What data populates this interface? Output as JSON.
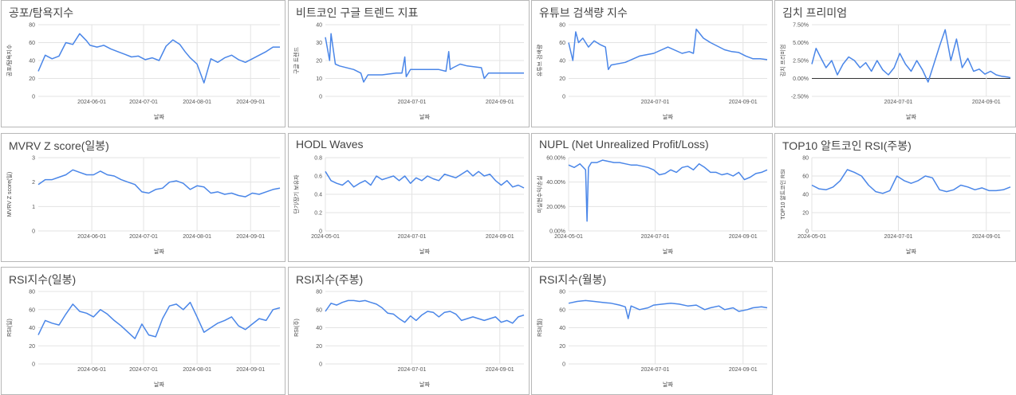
{
  "colors": {
    "series": "#4a86e8",
    "grid": "#e3e3e3",
    "border": "#b7b7b7"
  },
  "chart_data": [
    {
      "id": "fear-greed",
      "type": "line",
      "title": "공포/탐욕지수",
      "xlabel": "날짜",
      "ylabel": "공포/탐욕지수",
      "xlim": [
        0,
        140
      ],
      "ylim": [
        0,
        80
      ],
      "yticks": [
        0,
        20,
        40,
        60,
        80
      ],
      "ytick_labels": [
        "0",
        "20",
        "40",
        "60",
        "80"
      ],
      "xticks": [
        31,
        61,
        92,
        123
      ],
      "xtick_labels": [
        "2024-06-01",
        "2024-07-01",
        "2024-08-01",
        "2024-09-01"
      ],
      "zero_line": false,
      "x": [
        0,
        4,
        8,
        12,
        16,
        20,
        24,
        28,
        30,
        34,
        38,
        42,
        46,
        50,
        54,
        58,
        62,
        66,
        70,
        74,
        78,
        82,
        85,
        88,
        92,
        96,
        100,
        104,
        108,
        112,
        116,
        120,
        124,
        128,
        132,
        136,
        140
      ],
      "y": [
        28,
        46,
        42,
        45,
        60,
        58,
        70,
        62,
        57,
        55,
        57,
        53,
        50,
        47,
        44,
        45,
        41,
        43,
        40,
        56,
        63,
        58,
        50,
        43,
        36,
        15,
        42,
        38,
        43,
        46,
        41,
        38,
        42,
        46,
        50,
        55,
        55
      ]
    },
    {
      "id": "google-trends",
      "type": "line",
      "title": "비트코인 구글 트렌드 지표",
      "xlabel": "날짜",
      "ylabel": "구글 트렌드",
      "xlim": [
        0,
        140
      ],
      "ylim": [
        0,
        40
      ],
      "yticks": [
        0,
        10,
        20,
        30,
        40
      ],
      "ytick_labels": [
        "0",
        "10",
        "20",
        "30",
        "40"
      ],
      "xticks": [
        61,
        123
      ],
      "xtick_labels": [
        "2024-07-01",
        "2024-09-01"
      ],
      "zero_line": false,
      "x": [
        0,
        3,
        4,
        7,
        10,
        20,
        25,
        27,
        30,
        40,
        50,
        54,
        56,
        57,
        60,
        70,
        80,
        85,
        87,
        88,
        90,
        95,
        100,
        110,
        112,
        115,
        125,
        130,
        140
      ],
      "y": [
        33,
        20,
        35,
        18,
        17,
        15,
        13,
        8,
        12,
        12,
        13,
        13,
        22,
        11,
        15,
        15,
        15,
        14,
        25,
        15,
        16,
        18,
        17,
        16,
        10,
        13,
        13,
        13,
        13
      ]
    },
    {
      "id": "youtube-search",
      "type": "line",
      "title": "유튜브 검색량 지수",
      "xlabel": "날짜",
      "ylabel": "유튜브 검색량",
      "xlim": [
        0,
        140
      ],
      "ylim": [
        0,
        80
      ],
      "yticks": [
        0,
        20,
        40,
        60,
        80
      ],
      "ytick_labels": [
        "0",
        "20",
        "40",
        "60",
        "80"
      ],
      "xticks": [
        61,
        123
      ],
      "xtick_labels": [
        "2024-07-01",
        "2024-09-01"
      ],
      "zero_line": false,
      "x": [
        0,
        3,
        5,
        7,
        10,
        14,
        18,
        22,
        26,
        28,
        30,
        40,
        50,
        60,
        70,
        80,
        85,
        88,
        90,
        95,
        100,
        110,
        115,
        120,
        125,
        130,
        135,
        140
      ],
      "y": [
        60,
        40,
        72,
        60,
        65,
        55,
        62,
        58,
        55,
        30,
        35,
        38,
        45,
        48,
        55,
        48,
        50,
        48,
        75,
        65,
        60,
        52,
        50,
        49,
        45,
        42,
        42,
        41
      ]
    },
    {
      "id": "kimchi-premium",
      "type": "line",
      "title": "김치 프리미엄",
      "xlabel": "날짜",
      "ylabel": "김치 프리미엄",
      "xlim": [
        0,
        140
      ],
      "ylim": [
        -2.5,
        7.5
      ],
      "yticks": [
        -2.5,
        0,
        2.5,
        5,
        7.5
      ],
      "ytick_labels": [
        "-2.50%",
        "0.00%",
        "2.50%",
        "5.00%",
        "7.50%"
      ],
      "xticks": [
        61,
        123
      ],
      "xtick_labels": [
        "2024-07-01",
        "2024-09-01"
      ],
      "zero_line": true,
      "x": [
        0,
        3,
        6,
        10,
        14,
        18,
        22,
        26,
        30,
        34,
        38,
        42,
        46,
        50,
        54,
        58,
        62,
        66,
        70,
        74,
        78,
        82,
        86,
        90,
        94,
        98,
        102,
        106,
        110,
        114,
        118,
        122,
        126,
        130,
        134,
        138,
        140
      ],
      "y": [
        2,
        4.2,
        3,
        1.5,
        2.5,
        0.5,
        2,
        3,
        2.5,
        1.5,
        2.2,
        1,
        2.5,
        1.2,
        0.5,
        1.5,
        3.5,
        2,
        1,
        2.5,
        1.2,
        -0.5,
        2,
        4.5,
        6.8,
        2.5,
        5.5,
        1.5,
        2.8,
        1,
        1.3,
        0.6,
        1,
        0.5,
        0.3,
        0.2,
        0.1
      ]
    },
    {
      "id": "mvrv-z",
      "type": "line",
      "title": "MVRV Z score(일봉)",
      "xlabel": "날짜",
      "ylabel": "MVRV Z score(일)",
      "xlim": [
        0,
        140
      ],
      "ylim": [
        0,
        3
      ],
      "yticks": [
        0,
        1,
        2,
        3
      ],
      "ytick_labels": [
        "0",
        "1",
        "2",
        "3"
      ],
      "xticks": [
        31,
        61,
        92,
        123
      ],
      "xtick_labels": [
        "2024-06-01",
        "2024-07-01",
        "2024-08-01",
        "2024-09-01"
      ],
      "zero_line": false,
      "x": [
        0,
        4,
        8,
        12,
        16,
        20,
        24,
        28,
        32,
        36,
        40,
        44,
        48,
        52,
        56,
        60,
        64,
        68,
        72,
        76,
        80,
        84,
        88,
        92,
        96,
        100,
        104,
        108,
        112,
        116,
        120,
        124,
        128,
        132,
        136,
        140
      ],
      "y": [
        1.9,
        2.1,
        2.1,
        2.2,
        2.3,
        2.5,
        2.4,
        2.3,
        2.3,
        2.45,
        2.3,
        2.25,
        2.1,
        2.0,
        1.9,
        1.6,
        1.55,
        1.7,
        1.75,
        2.0,
        2.05,
        1.95,
        1.7,
        1.85,
        1.8,
        1.55,
        1.6,
        1.5,
        1.55,
        1.45,
        1.4,
        1.55,
        1.5,
        1.6,
        1.7,
        1.75
      ]
    },
    {
      "id": "hodl-waves",
      "type": "line",
      "title": "HODL Waves",
      "xlabel": "날짜",
      "ylabel": "단기/장기 보유자",
      "xlim": [
        0,
        140
      ],
      "ylim": [
        0,
        0.8
      ],
      "yticks": [
        0,
        0.2,
        0.4,
        0.6,
        0.8
      ],
      "ytick_labels": [
        "0",
        "0.2",
        "0.4",
        "0.6",
        "0.8"
      ],
      "xticks": [
        0,
        61,
        123
      ],
      "xtick_labels": [
        "2024-05-01",
        "2024-07-01",
        "2024-09-01"
      ],
      "zero_line": false,
      "x": [
        0,
        4,
        8,
        12,
        16,
        20,
        24,
        28,
        32,
        36,
        40,
        44,
        48,
        52,
        56,
        60,
        64,
        68,
        72,
        76,
        80,
        84,
        88,
        92,
        96,
        100,
        104,
        108,
        112,
        116,
        120,
        124,
        128,
        132,
        136,
        140
      ],
      "y": [
        0.65,
        0.55,
        0.52,
        0.5,
        0.55,
        0.48,
        0.52,
        0.55,
        0.5,
        0.6,
        0.56,
        0.58,
        0.6,
        0.55,
        0.6,
        0.52,
        0.58,
        0.55,
        0.6,
        0.57,
        0.55,
        0.62,
        0.6,
        0.58,
        0.62,
        0.66,
        0.6,
        0.65,
        0.6,
        0.62,
        0.55,
        0.5,
        0.55,
        0.48,
        0.5,
        0.47
      ]
    },
    {
      "id": "nupl",
      "type": "line",
      "title": "NUPL (Net Unrealized Profit/Loss)",
      "xlabel": "날짜",
      "ylabel": "미실현수익/손실",
      "xlim": [
        0,
        140
      ],
      "ylim": [
        0,
        60
      ],
      "yticks": [
        0,
        20,
        40,
        60
      ],
      "ytick_labels": [
        "0.00%",
        "20.00%",
        "40.00%",
        "60.00%"
      ],
      "xticks": [
        0,
        61,
        123
      ],
      "xtick_labels": [
        "2024-05-01",
        "2024-07-01",
        "2024-09-01"
      ],
      "zero_line": false,
      "x": [
        0,
        4,
        8,
        12,
        13,
        14,
        16,
        20,
        24,
        28,
        32,
        36,
        40,
        44,
        48,
        52,
        56,
        60,
        64,
        68,
        72,
        76,
        80,
        84,
        88,
        92,
        96,
        100,
        104,
        108,
        112,
        116,
        120,
        124,
        128,
        132,
        136,
        140
      ],
      "y": [
        54,
        52,
        55,
        50,
        8,
        52,
        56,
        56,
        58,
        57,
        56,
        56,
        55,
        54,
        54,
        53,
        52,
        50,
        46,
        47,
        50,
        48,
        52,
        53,
        50,
        55,
        52,
        48,
        48,
        46,
        47,
        45,
        48,
        42,
        44,
        47,
        48,
        50
      ]
    },
    {
      "id": "top10-alt-rsi",
      "type": "line",
      "title": "TOP10 알트코인 RSI(주봉)",
      "xlabel": "날짜",
      "ylabel": "TOP10 알트코인 RSI",
      "xlim": [
        0,
        140
      ],
      "ylim": [
        0,
        80
      ],
      "yticks": [
        0,
        20,
        40,
        60,
        80
      ],
      "ytick_labels": [
        "0",
        "20",
        "40",
        "60",
        "80"
      ],
      "xticks": [
        0,
        61,
        123
      ],
      "xtick_labels": [
        "2024-05-01",
        "2024-07-01",
        "2024-09-01"
      ],
      "zero_line": false,
      "x": [
        0,
        5,
        10,
        15,
        20,
        25,
        30,
        35,
        40,
        45,
        50,
        55,
        60,
        65,
        70,
        75,
        80,
        85,
        90,
        95,
        100,
        105,
        110,
        115,
        120,
        125,
        130,
        135,
        140
      ],
      "y": [
        50,
        46,
        45,
        48,
        55,
        67,
        64,
        60,
        50,
        43,
        41,
        44,
        60,
        55,
        52,
        55,
        60,
        58,
        45,
        43,
        45,
        50,
        48,
        45,
        47,
        44,
        44,
        45,
        48
      ]
    },
    {
      "id": "rsi-daily",
      "type": "line",
      "title": "RSI지수(일봉)",
      "xlabel": "날짜",
      "ylabel": "RSI(일)",
      "xlim": [
        0,
        140
      ],
      "ylim": [
        0,
        80
      ],
      "yticks": [
        0,
        20,
        40,
        60,
        80
      ],
      "ytick_labels": [
        "0",
        "20",
        "40",
        "60",
        "80"
      ],
      "xticks": [
        31,
        61,
        92,
        123
      ],
      "xtick_labels": [
        "2024-06-01",
        "2024-07-01",
        "2024-08-01",
        "2024-09-01"
      ],
      "zero_line": false,
      "x": [
        0,
        4,
        8,
        12,
        16,
        20,
        24,
        28,
        32,
        36,
        40,
        44,
        48,
        52,
        56,
        60,
        64,
        68,
        72,
        76,
        80,
        84,
        88,
        92,
        96,
        100,
        104,
        108,
        112,
        116,
        120,
        124,
        128,
        132,
        136,
        140
      ],
      "y": [
        32,
        48,
        45,
        43,
        55,
        66,
        58,
        56,
        52,
        60,
        55,
        48,
        42,
        35,
        28,
        44,
        32,
        30,
        50,
        64,
        66,
        60,
        68,
        52,
        35,
        40,
        45,
        48,
        52,
        42,
        38,
        44,
        50,
        48,
        60,
        62
      ]
    },
    {
      "id": "rsi-weekly",
      "type": "line",
      "title": "RSI지수(주봉)",
      "xlabel": "날짜",
      "ylabel": "RSI(주)",
      "xlim": [
        0,
        140
      ],
      "ylim": [
        0,
        80
      ],
      "yticks": [
        0,
        20,
        40,
        60,
        80
      ],
      "ytick_labels": [
        "0",
        "20",
        "40",
        "60",
        "80"
      ],
      "xticks": [
        61,
        123
      ],
      "xtick_labels": [
        "2024-07-01",
        "2024-09-01"
      ],
      "zero_line": false,
      "x": [
        0,
        4,
        8,
        12,
        16,
        20,
        24,
        28,
        32,
        36,
        40,
        44,
        48,
        52,
        56,
        60,
        64,
        68,
        72,
        76,
        80,
        84,
        88,
        92,
        96,
        100,
        104,
        108,
        112,
        116,
        120,
        124,
        128,
        132,
        136,
        140
      ],
      "y": [
        58,
        67,
        65,
        68,
        70,
        70,
        69,
        70,
        68,
        66,
        62,
        56,
        55,
        50,
        46,
        53,
        48,
        54,
        58,
        57,
        52,
        57,
        58,
        55,
        48,
        50,
        52,
        50,
        48,
        50,
        52,
        46,
        48,
        45,
        52,
        54
      ]
    },
    {
      "id": "rsi-monthly",
      "type": "line",
      "title": "RSI지수(월봉)",
      "xlabel": "날짜",
      "ylabel": "RSI(월)",
      "xlim": [
        0,
        140
      ],
      "ylim": [
        0,
        80
      ],
      "yticks": [
        0,
        20,
        40,
        60,
        80
      ],
      "ytick_labels": [
        "0",
        "20",
        "40",
        "60",
        "80"
      ],
      "xticks": [
        61,
        123
      ],
      "xtick_labels": [
        "2024-07-01",
        "2024-09-01"
      ],
      "zero_line": false,
      "x": [
        0,
        6,
        12,
        18,
        24,
        30,
        36,
        40,
        42,
        44,
        50,
        56,
        60,
        66,
        72,
        78,
        84,
        90,
        96,
        100,
        106,
        110,
        116,
        120,
        126,
        130,
        136,
        140
      ],
      "y": [
        67,
        69,
        70,
        69,
        68,
        67,
        65,
        63,
        50,
        64,
        60,
        62,
        65,
        66,
        67,
        66,
        64,
        65,
        60,
        62,
        64,
        60,
        62,
        58,
        60,
        62,
        63,
        62
      ]
    }
  ]
}
